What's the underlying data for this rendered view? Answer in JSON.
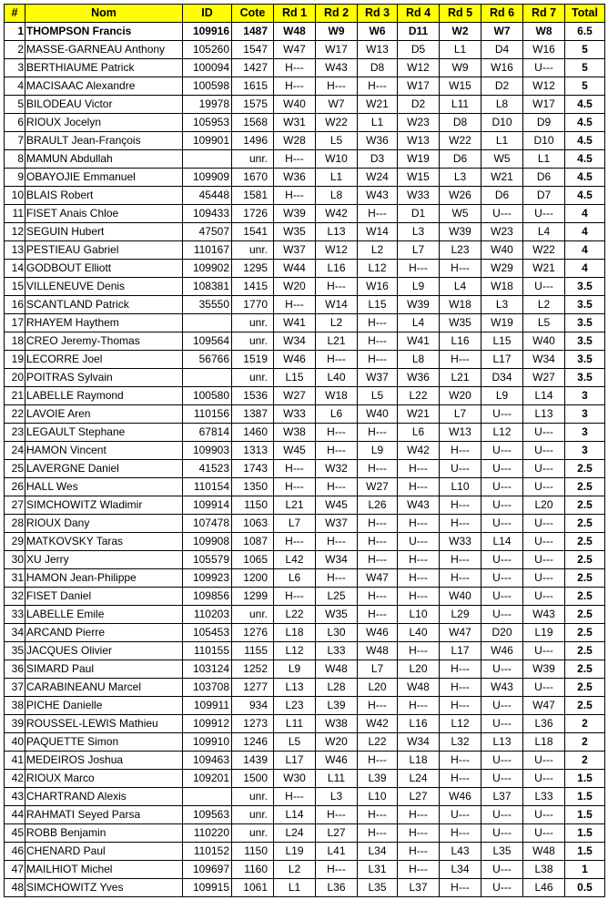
{
  "header_color": "#ffff00",
  "columns": [
    "#",
    "Nom",
    "ID",
    "Cote",
    "Rd 1",
    "Rd 2",
    "Rd 3",
    "Rd 4",
    "Rd 5",
    "Rd 6",
    "Rd 7",
    "Total"
  ],
  "rows": [
    [
      "1",
      "THOMPSON Francis",
      "109916",
      "1487",
      "W48",
      "W9",
      "W6",
      "D11",
      "W2",
      "W7",
      "W8",
      "6.5"
    ],
    [
      "2",
      "MASSE-GARNEAU Anthony",
      "105260",
      "1547",
      "W47",
      "W17",
      "W13",
      "D5",
      "L1",
      "D4",
      "W16",
      "5"
    ],
    [
      "3",
      "BERTHIAUME Patrick",
      "100094",
      "1427",
      "H---",
      "W43",
      "D8",
      "W12",
      "W9",
      "W16",
      "U---",
      "5"
    ],
    [
      "4",
      "MACISAAC Alexandre",
      "100598",
      "1615",
      "H---",
      "H---",
      "H---",
      "W17",
      "W15",
      "D2",
      "W12",
      "5"
    ],
    [
      "5",
      "BILODEAU Victor",
      "19978",
      "1575",
      "W40",
      "W7",
      "W21",
      "D2",
      "L11",
      "L8",
      "W17",
      "4.5"
    ],
    [
      "6",
      "RIOUX Jocelyn",
      "105953",
      "1568",
      "W31",
      "W22",
      "L1",
      "W23",
      "D8",
      "D10",
      "D9",
      "4.5"
    ],
    [
      "7",
      "BRAULT Jean-François",
      "109901",
      "1496",
      "W28",
      "L5",
      "W36",
      "W13",
      "W22",
      "L1",
      "D10",
      "4.5"
    ],
    [
      "8",
      "MAMUN Abdullah",
      "",
      "unr.",
      "H---",
      "W10",
      "D3",
      "W19",
      "D6",
      "W5",
      "L1",
      "4.5"
    ],
    [
      "9",
      "OBAYOJIE Emmanuel",
      "109909",
      "1670",
      "W36",
      "L1",
      "W24",
      "W15",
      "L3",
      "W21",
      "D6",
      "4.5"
    ],
    [
      "10",
      "BLAIS Robert",
      "45448",
      "1581",
      "H---",
      "L8",
      "W43",
      "W33",
      "W26",
      "D6",
      "D7",
      "4.5"
    ],
    [
      "11",
      "FISET Anais Chloe",
      "109433",
      "1726",
      "W39",
      "W42",
      "H---",
      "D1",
      "W5",
      "U---",
      "U---",
      "4"
    ],
    [
      "12",
      "SEGUIN Hubert",
      "47507",
      "1541",
      "W35",
      "L13",
      "W14",
      "L3",
      "W39",
      "W23",
      "L4",
      "4"
    ],
    [
      "13",
      "PESTIEAU Gabriel",
      "110167",
      "unr.",
      "W37",
      "W12",
      "L2",
      "L7",
      "L23",
      "W40",
      "W22",
      "4"
    ],
    [
      "14",
      "GODBOUT Elliott",
      "109902",
      "1295",
      "W44",
      "L16",
      "L12",
      "H---",
      "H---",
      "W29",
      "W21",
      "4"
    ],
    [
      "15",
      "VILLENEUVE Denis",
      "108381",
      "1415",
      "W20",
      "H---",
      "W16",
      "L9",
      "L4",
      "W18",
      "U---",
      "3.5"
    ],
    [
      "16",
      "SCANTLAND Patrick",
      "35550",
      "1770",
      "H---",
      "W14",
      "L15",
      "W39",
      "W18",
      "L3",
      "L2",
      "3.5"
    ],
    [
      "17",
      "RHAYEM Haythem",
      "",
      "unr.",
      "W41",
      "L2",
      "H---",
      "L4",
      "W35",
      "W19",
      "L5",
      "3.5"
    ],
    [
      "18",
      "CREO Jeremy-Thomas",
      "109564",
      "unr.",
      "W34",
      "L21",
      "H---",
      "W41",
      "L16",
      "L15",
      "W40",
      "3.5"
    ],
    [
      "19",
      "LECORRE Joel",
      "56766",
      "1519",
      "W46",
      "H---",
      "H---",
      "L8",
      "H---",
      "L17",
      "W34",
      "3.5"
    ],
    [
      "20",
      "POITRAS Sylvain",
      "",
      "unr.",
      "L15",
      "L40",
      "W37",
      "W36",
      "L21",
      "D34",
      "W27",
      "3.5"
    ],
    [
      "21",
      "LABELLE Raymond",
      "100580",
      "1536",
      "W27",
      "W18",
      "L5",
      "L22",
      "W20",
      "L9",
      "L14",
      "3"
    ],
    [
      "22",
      "LAVOIE Aren",
      "110156",
      "1387",
      "W33",
      "L6",
      "W40",
      "W21",
      "L7",
      "U---",
      "L13",
      "3"
    ],
    [
      "23",
      "LEGAULT Stephane",
      "67814",
      "1460",
      "W38",
      "H---",
      "H---",
      "L6",
      "W13",
      "L12",
      "U---",
      "3"
    ],
    [
      "24",
      "HAMON Vincent",
      "109903",
      "1313",
      "W45",
      "H---",
      "L9",
      "W42",
      "H---",
      "U---",
      "U---",
      "3"
    ],
    [
      "25",
      "LAVERGNE Daniel",
      "41523",
      "1743",
      "H---",
      "W32",
      "H---",
      "H---",
      "U---",
      "U---",
      "U---",
      "2.5"
    ],
    [
      "26",
      "HALL Wes",
      "110154",
      "1350",
      "H---",
      "H---",
      "W27",
      "H---",
      "L10",
      "U---",
      "U---",
      "2.5"
    ],
    [
      "27",
      "SIMCHOWITZ Wladimir",
      "109914",
      "1150",
      "L21",
      "W45",
      "L26",
      "W43",
      "H---",
      "U---",
      "L20",
      "2.5"
    ],
    [
      "28",
      "RIOUX Dany",
      "107478",
      "1063",
      "L7",
      "W37",
      "H---",
      "H---",
      "H---",
      "U---",
      "U---",
      "2.5"
    ],
    [
      "29",
      "MATKOVSKY Taras",
      "109908",
      "1087",
      "H---",
      "H---",
      "H---",
      "U---",
      "W33",
      "L14",
      "U---",
      "2.5"
    ],
    [
      "30",
      "XU Jerry",
      "105579",
      "1065",
      "L42",
      "W34",
      "H---",
      "H---",
      "H---",
      "U---",
      "U---",
      "2.5"
    ],
    [
      "31",
      "HAMON Jean-Philippe",
      "109923",
      "1200",
      "L6",
      "H---",
      "W47",
      "H---",
      "H---",
      "U---",
      "U---",
      "2.5"
    ],
    [
      "32",
      "FISET Daniel",
      "109856",
      "1299",
      "H---",
      "L25",
      "H---",
      "H---",
      "W40",
      "U---",
      "U---",
      "2.5"
    ],
    [
      "33",
      "LABELLE Emile",
      "110203",
      "unr.",
      "L22",
      "W35",
      "H---",
      "L10",
      "L29",
      "U---",
      "W43",
      "2.5"
    ],
    [
      "34",
      "ARCAND Pierre",
      "105453",
      "1276",
      "L18",
      "L30",
      "W46",
      "L40",
      "W47",
      "D20",
      "L19",
      "2.5"
    ],
    [
      "35",
      "JACQUES Olivier",
      "110155",
      "1155",
      "L12",
      "L33",
      "W48",
      "H---",
      "L17",
      "W46",
      "U---",
      "2.5"
    ],
    [
      "36",
      "SIMARD Paul",
      "103124",
      "1252",
      "L9",
      "W48",
      "L7",
      "L20",
      "H---",
      "U---",
      "W39",
      "2.5"
    ],
    [
      "37",
      "CARABINEANU Marcel",
      "103708",
      "1277",
      "L13",
      "L28",
      "L20",
      "W48",
      "H---",
      "W43",
      "U---",
      "2.5"
    ],
    [
      "38",
      "PICHE Danielle",
      "109911",
      "934",
      "L23",
      "L39",
      "H---",
      "H---",
      "H---",
      "U---",
      "W47",
      "2.5"
    ],
    [
      "39",
      "ROUSSEL-LEWIS Mathieu",
      "109912",
      "1273",
      "L11",
      "W38",
      "W42",
      "L16",
      "L12",
      "U---",
      "L36",
      "2"
    ],
    [
      "40",
      "PAQUETTE Simon",
      "109910",
      "1246",
      "L5",
      "W20",
      "L22",
      "W34",
      "L32",
      "L13",
      "L18",
      "2"
    ],
    [
      "41",
      "MEDEIROS Joshua",
      "109463",
      "1439",
      "L17",
      "W46",
      "H---",
      "L18",
      "H---",
      "U---",
      "U---",
      "2"
    ],
    [
      "42",
      "RIOUX Marco",
      "109201",
      "1500",
      "W30",
      "L11",
      "L39",
      "L24",
      "H---",
      "U---",
      "U---",
      "1.5"
    ],
    [
      "43",
      "CHARTRAND Alexis",
      "",
      "unr.",
      "H---",
      "L3",
      "L10",
      "L27",
      "W46",
      "L37",
      "L33",
      "1.5"
    ],
    [
      "44",
      "RAHMATI Seyed Parsa",
      "109563",
      "unr.",
      "L14",
      "H---",
      "H---",
      "H---",
      "U---",
      "U---",
      "U---",
      "1.5"
    ],
    [
      "45",
      "ROBB Benjamin",
      "110220",
      "unr.",
      "L24",
      "L27",
      "H---",
      "H---",
      "H---",
      "U---",
      "U---",
      "1.5"
    ],
    [
      "46",
      "CHENARD Paul",
      "110152",
      "1150",
      "L19",
      "L41",
      "L34",
      "H---",
      "L43",
      "L35",
      "W48",
      "1.5"
    ],
    [
      "47",
      "MAILHIOT Michel",
      "109697",
      "1160",
      "L2",
      "H---",
      "L31",
      "H---",
      "L34",
      "U---",
      "L38",
      "1"
    ],
    [
      "48",
      "SIMCHOWITZ Yves",
      "109915",
      "1061",
      "L1",
      "L36",
      "L35",
      "L37",
      "H---",
      "U---",
      "L46",
      "0.5"
    ]
  ]
}
